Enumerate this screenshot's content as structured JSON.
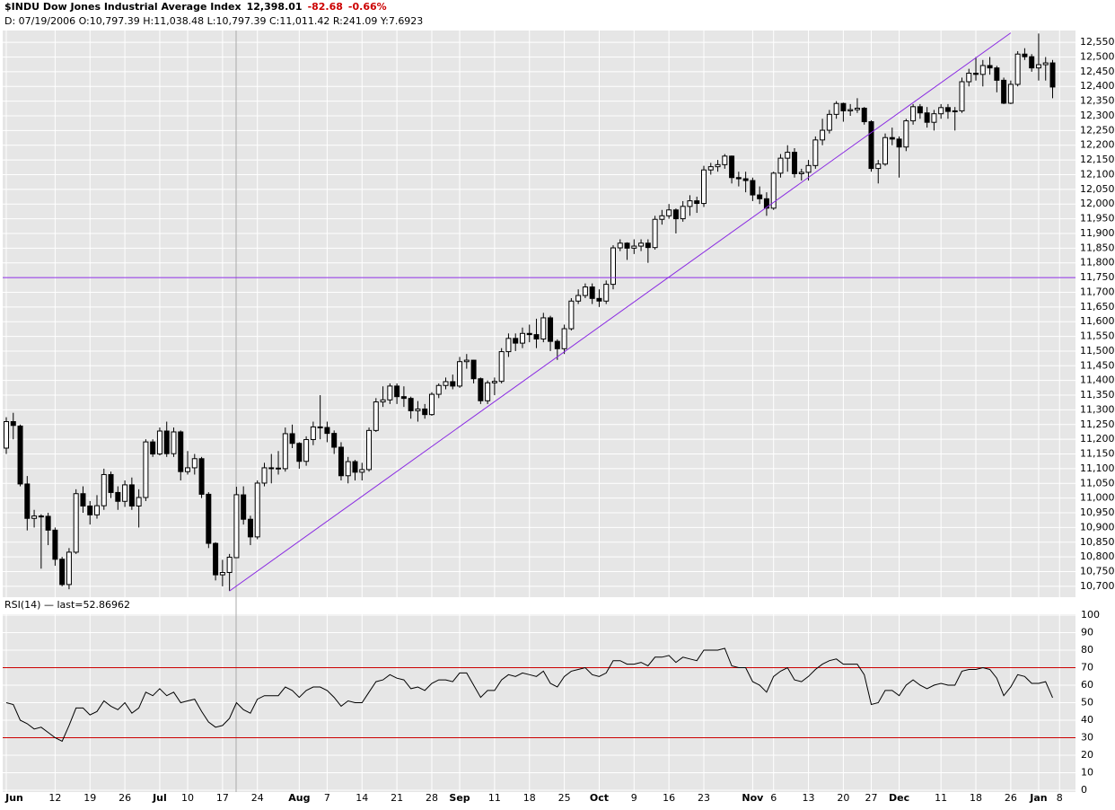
{
  "chart_data": {
    "type": "candlestick",
    "title": "$INDU Dow Jones Industrial Average Index",
    "last_price": "12,398.01",
    "change": "-82.68",
    "change_percent": "-0.66%",
    "info_line": "D: 07/19/2006 O:10,797.39 H:11,038.48 L:10,797.39 C:11,011.42 R:241.09 Y:7.6923",
    "categories": [
      "Jun",
      null,
      null,
      null,
      null,
      null,
      null,
      "12",
      null,
      null,
      null,
      null,
      "19",
      null,
      null,
      null,
      null,
      "26",
      null,
      null,
      null,
      null,
      "Jul",
      null,
      null,
      null,
      "10",
      null,
      null,
      null,
      null,
      "17",
      null,
      null,
      null,
      null,
      "24",
      null,
      null,
      null,
      null,
      null,
      "Aug",
      null,
      null,
      null,
      "7",
      null,
      null,
      null,
      null,
      "14",
      null,
      null,
      null,
      null,
      "21",
      null,
      null,
      null,
      null,
      "28",
      null,
      null,
      null,
      "Sep",
      null,
      null,
      null,
      null,
      "11",
      null,
      null,
      null,
      null,
      "18",
      null,
      null,
      null,
      null,
      "25",
      null,
      null,
      null,
      null,
      "Oct",
      null,
      null,
      null,
      null,
      "9",
      null,
      null,
      null,
      null,
      "16",
      null,
      null,
      null,
      null,
      "23",
      null,
      null,
      null,
      null,
      null,
      null,
      "Nov",
      null,
      null,
      "6",
      null,
      null,
      null,
      null,
      "13",
      null,
      null,
      null,
      null,
      "20",
      null,
      null,
      null,
      "27",
      null,
      null,
      null,
      "Dec",
      null,
      null,
      null,
      null,
      null,
      "11",
      null,
      null,
      null,
      null,
      "18",
      null,
      null,
      null,
      null,
      "26",
      null,
      null,
      null,
      "Jan",
      null,
      null,
      "8"
    ],
    "open": [
      11170,
      11260,
      11245,
      11048,
      10931,
      10939,
      10938,
      10891,
      10792,
      10706,
      10816,
      11015,
      10973,
      10943,
      10974,
      11080,
      11019,
      10989,
      11045,
      10973,
      11002,
      11191,
      11150,
      11228,
      11151,
      11225,
      11090,
      11103,
      11134,
      11013,
      10846,
      10739,
      10747,
      10797.39,
      11011,
      10928,
      10868,
      11051,
      11103,
      11102,
      11100,
      11219,
      11186,
      11125,
      11199,
      11242,
      11240,
      11220,
      11173,
      11076,
      11124,
      11088,
      11097,
      11230,
      11327,
      11334,
      11381,
      11345,
      11339,
      11297,
      11303,
      11284,
      11353,
      11383,
      11396,
      11381,
      11464,
      11469,
      11406,
      11331,
      11392,
      11397,
      11498,
      11543,
      11527,
      11560,
      11556,
      11541,
      11613,
      11533,
      11508,
      11576,
      11670,
      11689,
      11718,
      11679,
      11670,
      11727,
      11851,
      11867,
      11850,
      11857,
      11867,
      11852,
      11948,
      11960,
      11980,
      11950,
      11992,
      12011,
      12002,
      12116,
      12127,
      12134,
      12163,
      12090,
      12086,
      12080,
      12031,
      12018,
      11986,
      12105,
      12156,
      12176,
      12103,
      12108,
      12131,
      12218,
      12251,
      12305,
      12342,
      12317,
      12321,
      12326,
      12280,
      12121,
      12136,
      12226,
      12221,
      12194,
      12283,
      12331,
      12310,
      12278,
      12307,
      12328,
      12315,
      12317,
      12416,
      12445,
      12441,
      12471,
      12463,
      12421,
      12343,
      12407,
      12510,
      12501,
      12463,
      12474,
      12480,
      null
    ],
    "high": [
      11275,
      11290,
      11250,
      11075,
      10960,
      10945,
      10950,
      10900,
      10800,
      10830,
      11030,
      11040,
      10990,
      11010,
      11100,
      11090,
      11040,
      11060,
      11070,
      11030,
      11200,
      11200,
      11240,
      11260,
      11240,
      11230,
      11160,
      11150,
      11140,
      11020,
      10850,
      10790,
      10810,
      11038.48,
      11040,
      10940,
      11060,
      11120,
      11150,
      11160,
      11240,
      11250,
      11190,
      11210,
      11260,
      11350,
      11260,
      11230,
      11190,
      11140,
      11130,
      11120,
      11240,
      11340,
      11380,
      11390,
      11390,
      11380,
      11345,
      11330,
      11320,
      11360,
      11390,
      11410,
      11420,
      11480,
      11490,
      11470,
      11410,
      11400,
      11410,
      11510,
      11560,
      11560,
      11580,
      11590,
      11610,
      11630,
      11620,
      11540,
      11590,
      11680,
      11710,
      11730,
      11730,
      11710,
      11740,
      11860,
      11880,
      11870,
      11880,
      11880,
      11880,
      11960,
      11980,
      12000,
      11985,
      12010,
      12030,
      12025,
      12130,
      12140,
      12150,
      12170,
      12165,
      12110,
      12110,
      12090,
      12060,
      12040,
      12110,
      12170,
      12200,
      12190,
      12120,
      12150,
      12230,
      12290,
      12320,
      12350,
      12345,
      12340,
      12360,
      12330,
      12285,
      12150,
      12240,
      12260,
      12230,
      12290,
      12340,
      12340,
      12330,
      12320,
      12340,
      12340,
      12330,
      12430,
      12460,
      12500,
      12490,
      12500,
      12470,
      12430,
      12420,
      12520,
      12530,
      12510,
      12580,
      12500,
      12490,
      null
    ],
    "low": [
      11150,
      11200,
      11040,
      10890,
      10900,
      10760,
      10840,
      10770,
      10700,
      10690,
      10810,
      10950,
      10910,
      10930,
      10960,
      11000,
      10960,
      10970,
      10960,
      10900,
      10990,
      11140,
      11145,
      11140,
      11140,
      11060,
      11080,
      11080,
      11000,
      10830,
      10720,
      10700,
      10684,
      10797.39,
      10910,
      10840,
      10860,
      11040,
      11050,
      11080,
      11090,
      11170,
      11100,
      11110,
      11180,
      11200,
      11190,
      11150,
      11060,
      11050,
      11060,
      11060,
      11090,
      11225,
      11310,
      11320,
      11320,
      11310,
      11270,
      11260,
      11270,
      11280,
      11340,
      11370,
      11370,
      11375,
      11440,
      11390,
      11320,
      11320,
      11350,
      11390,
      11480,
      11500,
      11510,
      11530,
      11510,
      11530,
      11500,
      11470,
      11490,
      11570,
      11660,
      11680,
      11660,
      11650,
      11660,
      11710,
      11840,
      11810,
      11830,
      11840,
      11800,
      11845,
      11930,
      11950,
      11900,
      11940,
      11960,
      11970,
      11990,
      12100,
      12110,
      12120,
      12070,
      12060,
      12040,
      12010,
      12000,
      11960,
      11980,
      12090,
      12110,
      12090,
      12080,
      12080,
      12120,
      12200,
      12240,
      12290,
      12280,
      12300,
      12310,
      12270,
      12110,
      12070,
      12130,
      12200,
      12090,
      12180,
      12270,
      12290,
      12260,
      12250,
      12290,
      12290,
      12250,
      12310,
      12400,
      12420,
      12400,
      12440,
      12380,
      12340,
      12340,
      12400,
      12490,
      12450,
      12420,
      12420,
      12360,
      null
    ],
    "close": [
      11260,
      11247,
      11048,
      10931,
      10939,
      10938,
      10891,
      10792,
      10706,
      10816,
      11015,
      10973,
      10943,
      10974,
      11080,
      11019,
      10989,
      11045,
      10973,
      11002,
      11191,
      11150,
      11228,
      11151,
      11225,
      11090,
      11103,
      11134,
      11013,
      10846,
      10739,
      10747,
      10799,
      11011.42,
      10928,
      10868,
      11051,
      11103,
      11102,
      11100,
      11219,
      11186,
      11125,
      11199,
      11242,
      11240,
      11220,
      11173,
      11076,
      11124,
      11088,
      11097,
      11230,
      11327,
      11334,
      11381,
      11345,
      11339,
      11297,
      11303,
      11284,
      11353,
      11383,
      11396,
      11381,
      11464,
      11469,
      11406,
      11331,
      11392,
      11397,
      11498,
      11543,
      11527,
      11560,
      11556,
      11541,
      11613,
      11533,
      11508,
      11576,
      11670,
      11689,
      11718,
      11679,
      11670,
      11727,
      11851,
      11867,
      11850,
      11857,
      11867,
      11852,
      11948,
      11960,
      11980,
      11950,
      11992,
      12011,
      12002,
      12116,
      12127,
      12134,
      12163,
      12090,
      12086,
      12080,
      12031,
      12018,
      11986,
      12105,
      12156,
      12176,
      12103,
      12108,
      12131,
      12218,
      12251,
      12305,
      12342,
      12317,
      12321,
      12326,
      12280,
      12121,
      12136,
      12226,
      12221,
      12194,
      12283,
      12331,
      12310,
      12278,
      12307,
      12328,
      12315,
      12317,
      12416,
      12445,
      12441,
      12471,
      12463,
      12421,
      12343,
      12407,
      12510,
      12501,
      12463,
      12474,
      12480,
      12398,
      null
    ],
    "ylim": [
      10663,
      12584
    ],
    "yticks": [
      {
        "value": 10700,
        "label": "10,700"
      },
      {
        "value": 10750,
        "label": "10,750"
      },
      {
        "value": 10800,
        "label": "10,800"
      },
      {
        "value": 10850,
        "label": "10,850"
      },
      {
        "value": 10900,
        "label": "10,900"
      },
      {
        "value": 10950,
        "label": "10,950"
      },
      {
        "value": 11000,
        "label": "11,000"
      },
      {
        "value": 11050,
        "label": "11,050"
      },
      {
        "value": 11100,
        "label": "11,100"
      },
      {
        "value": 11150,
        "label": "11,150"
      },
      {
        "value": 11200,
        "label": "11,200"
      },
      {
        "value": 11250,
        "label": "11,250"
      },
      {
        "value": 11300,
        "label": "11,300"
      },
      {
        "value": 11350,
        "label": "11,350"
      },
      {
        "value": 11400,
        "label": "11,400"
      },
      {
        "value": 11450,
        "label": "11,450"
      },
      {
        "value": 11500,
        "label": "11,500"
      },
      {
        "value": 11550,
        "label": "11,550"
      },
      {
        "value": 11600,
        "label": "11,600"
      },
      {
        "value": 11650,
        "label": "11,650"
      },
      {
        "value": 11700,
        "label": "11,700"
      },
      {
        "value": 11750,
        "label": "11,750"
      },
      {
        "value": 11800,
        "label": "11,800"
      },
      {
        "value": 11850,
        "label": "11,850"
      },
      {
        "value": 11900,
        "label": "11,900"
      },
      {
        "value": 11950,
        "label": "11,950"
      },
      {
        "value": 12000,
        "label": "12,000"
      },
      {
        "value": 12050,
        "label": "12,050"
      },
      {
        "value": 12100,
        "label": "12,100"
      },
      {
        "value": 12150,
        "label": "12,150"
      },
      {
        "value": 12200,
        "label": "12,200"
      },
      {
        "value": 12250,
        "label": "12,250"
      },
      {
        "value": 12300,
        "label": "12,300"
      },
      {
        "value": 12350,
        "label": "12,350"
      },
      {
        "value": 12400,
        "label": "12,400"
      },
      {
        "value": 12450,
        "label": "12,450"
      },
      {
        "value": 12500,
        "label": "12,500"
      },
      {
        "value": 12550,
        "label": "12,550"
      }
    ],
    "grid": true,
    "line_color": "#8a2be2",
    "level_line": 11750,
    "trendline": {
      "start": [
        32,
        10684
      ],
      "end": [
        144,
        12582
      ]
    },
    "rsi": {
      "label": "RSI(14) — last=52.86962",
      "color": "#000000",
      "reference_color": "#cc0000",
      "values": [
        50,
        49,
        40,
        38,
        35,
        36,
        33,
        30,
        28,
        37,
        47,
        47,
        43,
        45,
        51,
        48,
        46,
        50,
        44,
        47,
        56,
        54,
        58,
        54,
        56,
        50,
        51,
        52,
        45,
        39,
        36,
        37,
        41,
        50,
        46,
        44,
        52,
        54,
        54,
        54,
        59,
        57,
        53,
        57,
        59,
        59,
        57,
        53,
        48,
        51,
        50,
        50,
        56,
        62,
        63,
        66,
        64,
        63,
        58,
        59,
        57,
        61,
        63,
        63,
        62,
        67,
        67,
        60,
        53,
        57,
        57,
        63,
        66,
        65,
        67,
        66,
        65,
        68,
        61,
        59,
        65,
        68,
        69,
        70,
        66,
        65,
        67,
        74,
        74,
        72,
        72,
        73,
        71,
        76,
        76,
        77,
        73,
        76,
        75,
        74,
        80,
        80,
        80,
        81,
        71,
        70,
        70,
        62,
        60,
        56,
        65,
        68,
        70,
        63,
        62,
        65,
        69,
        72,
        74,
        75,
        72,
        72,
        72,
        66,
        49,
        50,
        57,
        57,
        54,
        60,
        63,
        60,
        58,
        60,
        61,
        60,
        60,
        68,
        69,
        69,
        70,
        69,
        64,
        54,
        59,
        66,
        65,
        61,
        61,
        62,
        52.87,
        null
      ],
      "ylim": [
        0,
        100
      ],
      "yticks": [
        0,
        10,
        20,
        30,
        40,
        50,
        60,
        70,
        80,
        90,
        100
      ],
      "reference_lines": [
        70,
        30
      ]
    }
  }
}
